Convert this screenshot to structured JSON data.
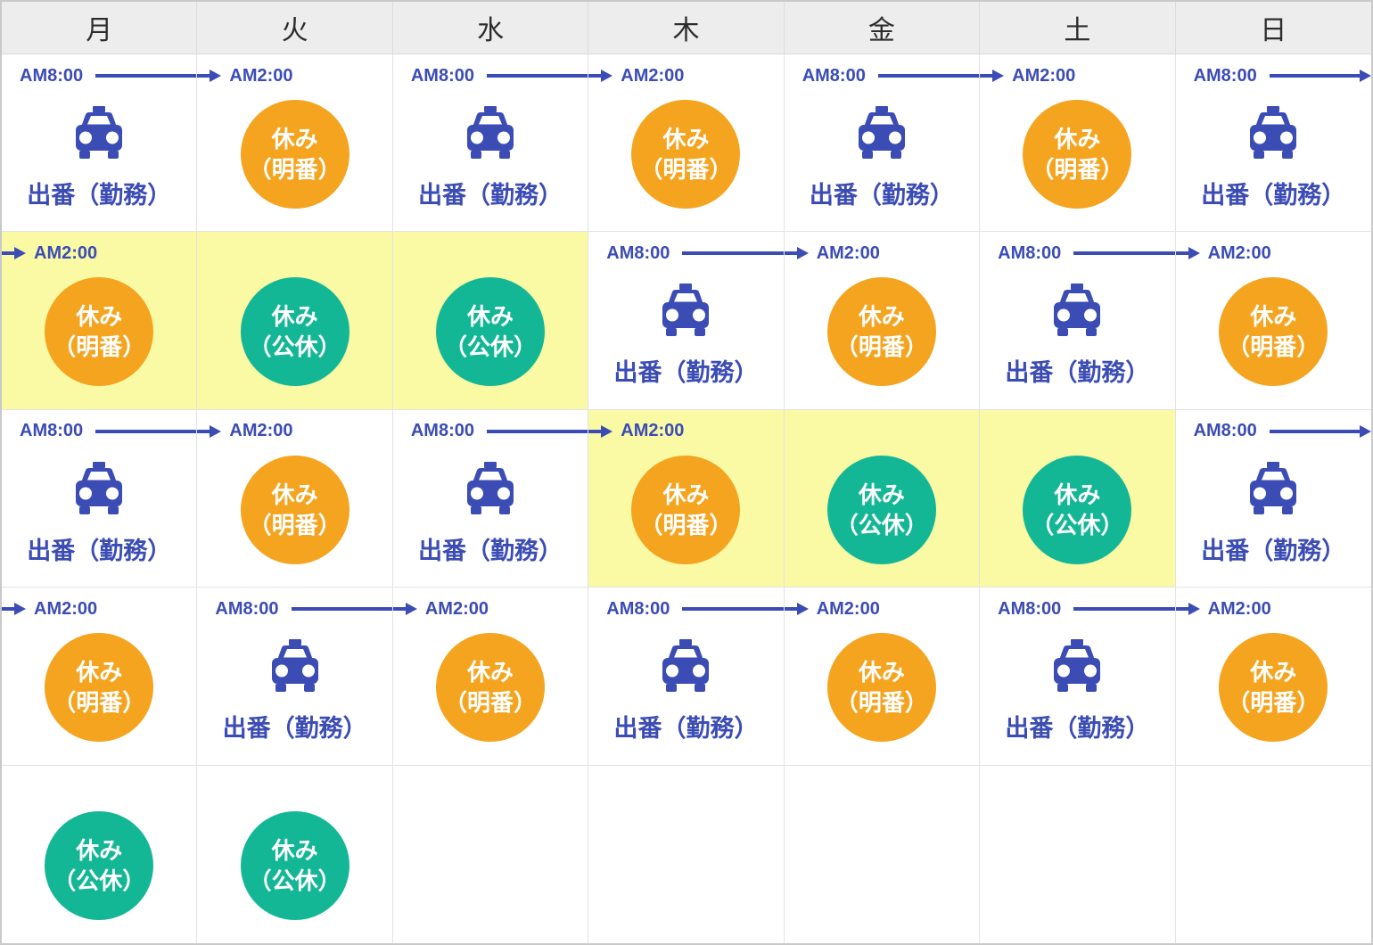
{
  "palette": {
    "blue": "#3b4cb5",
    "orange": "#f5a41f",
    "teal": "#14b795",
    "highlight_yellow": "#fafaa5",
    "header_bg": "#ededed",
    "header_text": "#2d2d2d",
    "grid_border": "#e3e3e3",
    "outer_border": "#c9c9c9",
    "cell_bg": "#ffffff",
    "circle_text": "#ffffff"
  },
  "header": {
    "days": [
      "月",
      "火",
      "水",
      "木",
      "金",
      "土",
      "日"
    ]
  },
  "legend": {
    "work_label": "出番（勤務）",
    "rest_ake_lines": [
      "休み",
      "（明番）"
    ],
    "rest_koukyu_lines": [
      "休み",
      "（公休）"
    ],
    "shift_start_time": "AM8:00",
    "shift_end_time": "AM2:00"
  },
  "grid": {
    "rows": [
      {
        "cells": [
          {
            "type": "work",
            "time": "AM8:00",
            "label": "出番（勤務）",
            "highlight": false,
            "edge_arrow": false
          },
          {
            "type": "rest_ake",
            "time": "AM2:00",
            "circle_lines": [
              "休み",
              "（明番）"
            ],
            "highlight": false
          },
          {
            "type": "work",
            "time": "AM8:00",
            "label": "出番（勤務）",
            "highlight": false,
            "edge_arrow": false
          },
          {
            "type": "rest_ake",
            "time": "AM2:00",
            "circle_lines": [
              "休み",
              "（明番）"
            ],
            "highlight": false
          },
          {
            "type": "work",
            "time": "AM8:00",
            "label": "出番（勤務）",
            "highlight": false,
            "edge_arrow": false
          },
          {
            "type": "rest_ake",
            "time": "AM2:00",
            "circle_lines": [
              "休み",
              "（明番）"
            ],
            "highlight": false
          },
          {
            "type": "work",
            "time": "AM8:00",
            "label": "出番（勤務）",
            "highlight": false,
            "edge_arrow": true
          }
        ]
      },
      {
        "cells": [
          {
            "type": "rest_ake",
            "time": "AM2:00",
            "circle_lines": [
              "休み",
              "（明番）"
            ],
            "highlight": true
          },
          {
            "type": "rest_koukyu",
            "circle_lines": [
              "休み",
              "（公休）"
            ],
            "highlight": true
          },
          {
            "type": "rest_koukyu",
            "circle_lines": [
              "休み",
              "（公休）"
            ],
            "highlight": true
          },
          {
            "type": "work",
            "time": "AM8:00",
            "label": "出番（勤務）",
            "highlight": false,
            "edge_arrow": false
          },
          {
            "type": "rest_ake",
            "time": "AM2:00",
            "circle_lines": [
              "休み",
              "（明番）"
            ],
            "highlight": false
          },
          {
            "type": "work",
            "time": "AM8:00",
            "label": "出番（勤務）",
            "highlight": false,
            "edge_arrow": false
          },
          {
            "type": "rest_ake",
            "time": "AM2:00",
            "circle_lines": [
              "休み",
              "（明番）"
            ],
            "highlight": false
          }
        ]
      },
      {
        "cells": [
          {
            "type": "work",
            "time": "AM8:00",
            "label": "出番（勤務）",
            "highlight": false,
            "edge_arrow": false
          },
          {
            "type": "rest_ake",
            "time": "AM2:00",
            "circle_lines": [
              "休み",
              "（明番）"
            ],
            "highlight": false
          },
          {
            "type": "work",
            "time": "AM8:00",
            "label": "出番（勤務）",
            "highlight": false,
            "edge_arrow": false
          },
          {
            "type": "rest_ake",
            "time": "AM2:00",
            "circle_lines": [
              "休み",
              "（明番）"
            ],
            "highlight": true
          },
          {
            "type": "rest_koukyu",
            "circle_lines": [
              "休み",
              "（公休）"
            ],
            "highlight": true
          },
          {
            "type": "rest_koukyu",
            "circle_lines": [
              "休み",
              "（公休）"
            ],
            "highlight": true
          },
          {
            "type": "work",
            "time": "AM8:00",
            "label": "出番（勤務）",
            "highlight": false,
            "edge_arrow": true
          }
        ]
      },
      {
        "cells": [
          {
            "type": "rest_ake",
            "time": "AM2:00",
            "circle_lines": [
              "休み",
              "（明番）"
            ],
            "highlight": false
          },
          {
            "type": "work",
            "time": "AM8:00",
            "label": "出番（勤務）",
            "highlight": false,
            "edge_arrow": false
          },
          {
            "type": "rest_ake",
            "time": "AM2:00",
            "circle_lines": [
              "休み",
              "（明番）"
            ],
            "highlight": false
          },
          {
            "type": "work",
            "time": "AM8:00",
            "label": "出番（勤務）",
            "highlight": false,
            "edge_arrow": false
          },
          {
            "type": "rest_ake",
            "time": "AM2:00",
            "circle_lines": [
              "休み",
              "（明番）"
            ],
            "highlight": false
          },
          {
            "type": "work",
            "time": "AM8:00",
            "label": "出番（勤務）",
            "highlight": false,
            "edge_arrow": false
          },
          {
            "type": "rest_ake",
            "time": "AM2:00",
            "circle_lines": [
              "休み",
              "（明番）"
            ],
            "highlight": false
          }
        ]
      },
      {
        "cells": [
          {
            "type": "rest_koukyu",
            "circle_lines": [
              "休み",
              "（公休）"
            ],
            "highlight": false
          },
          {
            "type": "rest_koukyu",
            "circle_lines": [
              "休み",
              "（公休）"
            ],
            "highlight": false
          },
          {
            "type": "empty"
          },
          {
            "type": "empty"
          },
          {
            "type": "empty"
          },
          {
            "type": "empty"
          },
          {
            "type": "empty"
          }
        ]
      }
    ]
  }
}
